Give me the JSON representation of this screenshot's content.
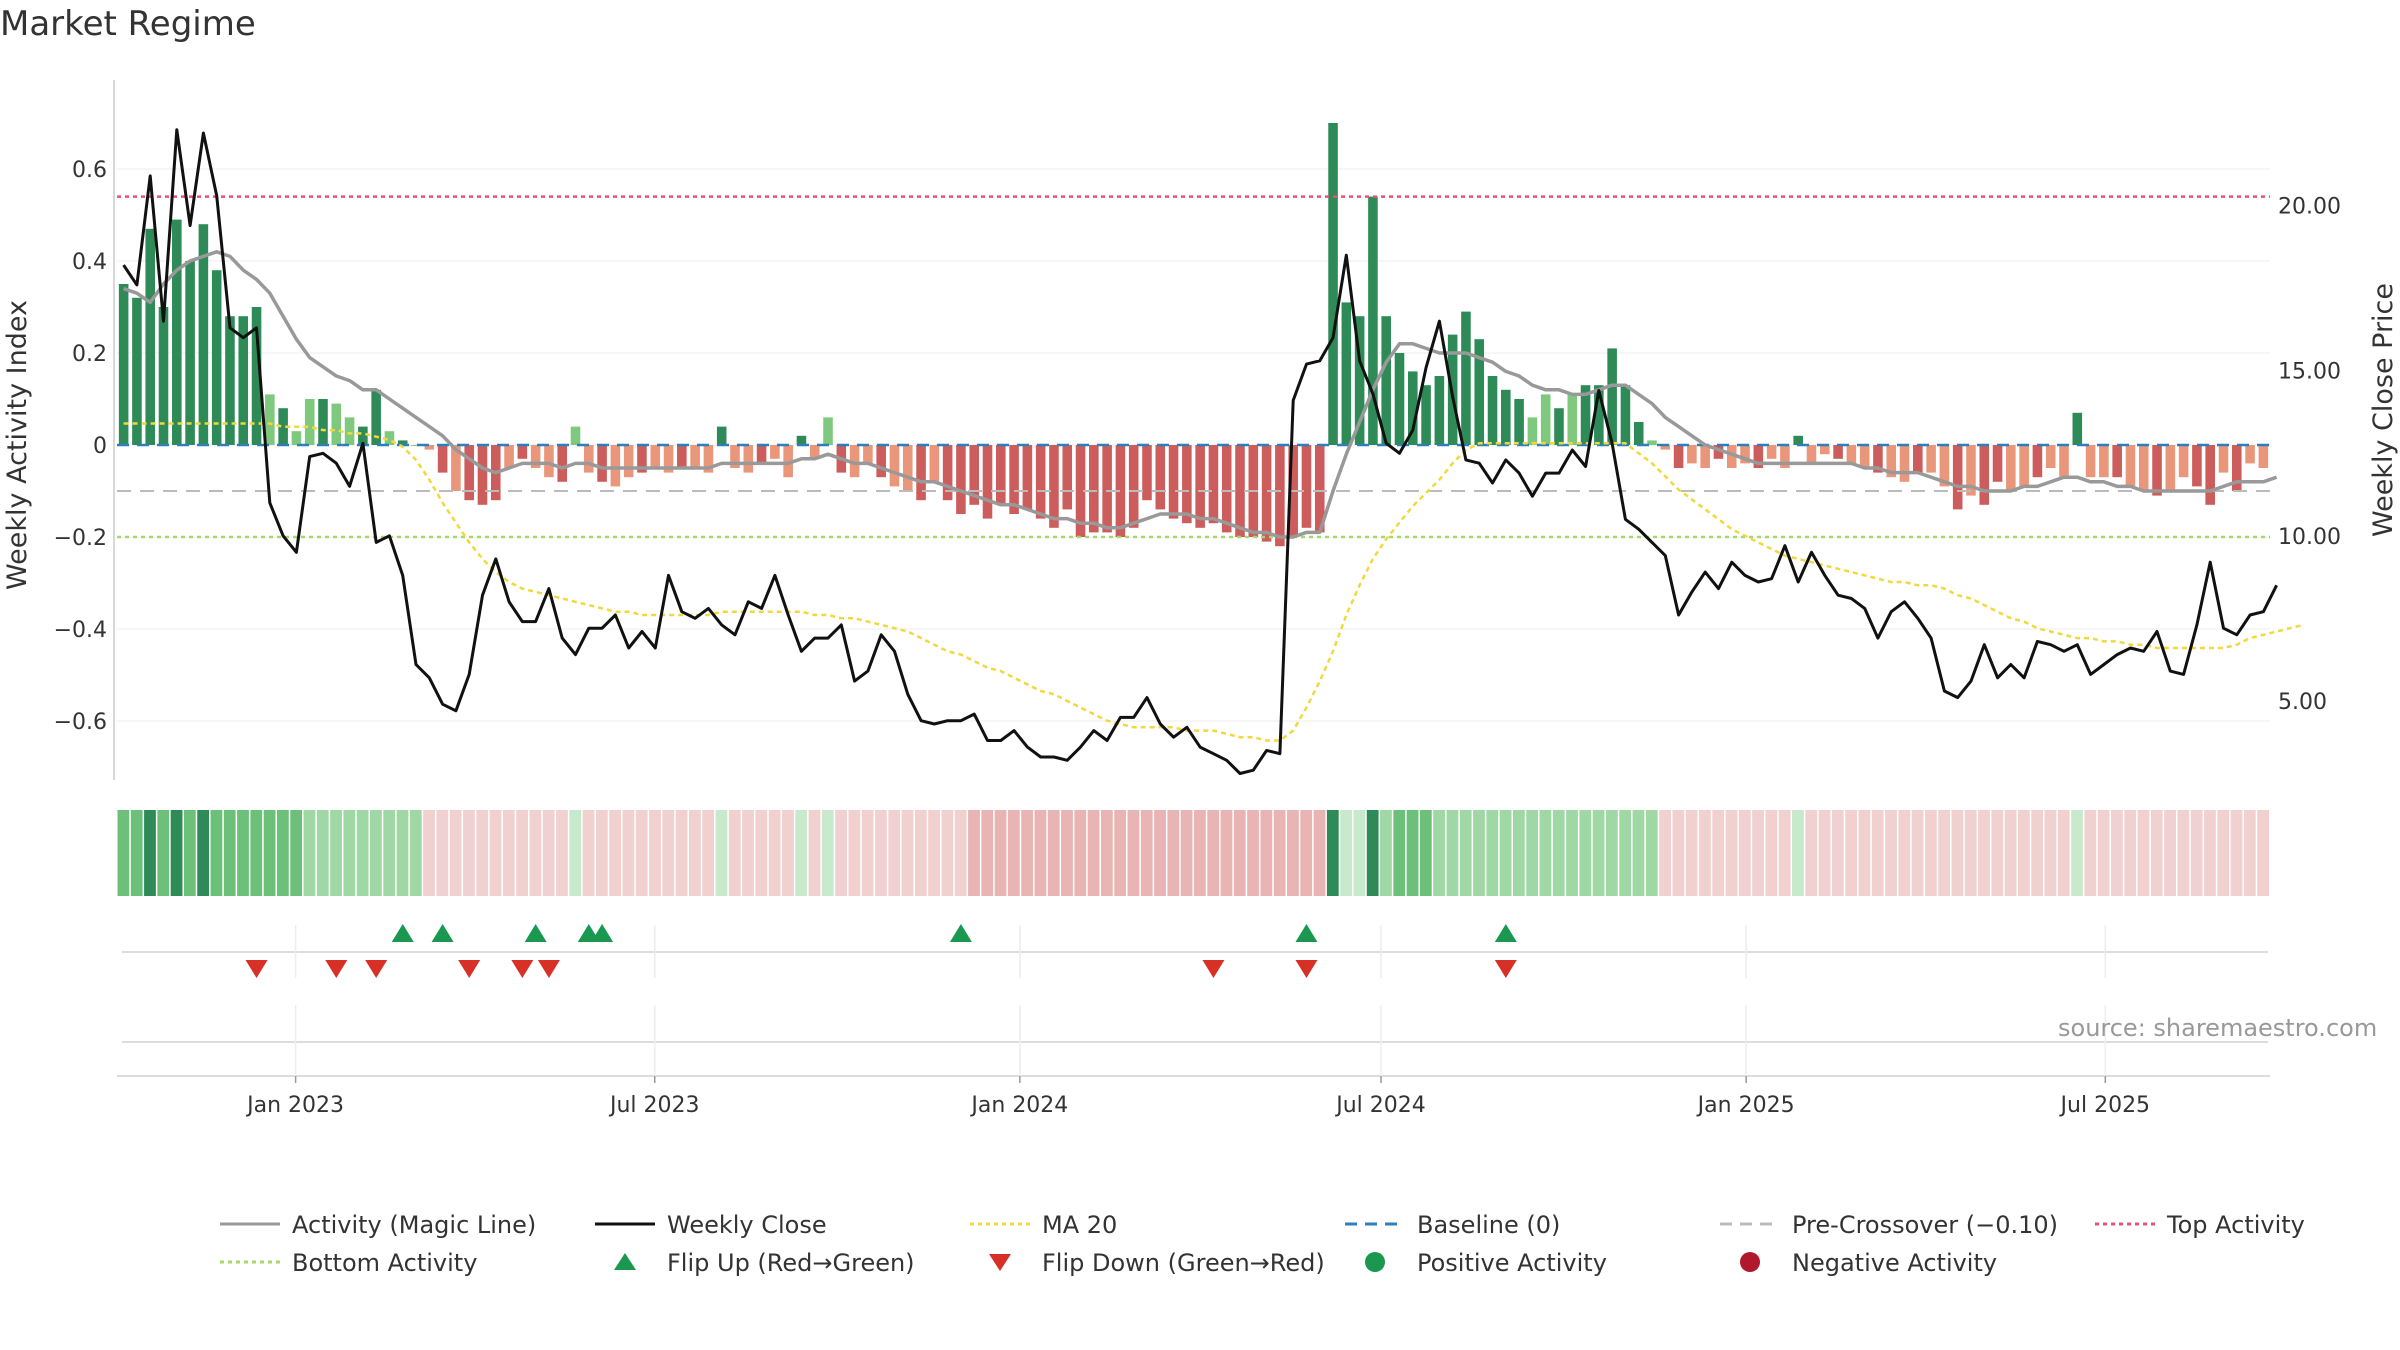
{
  "chart_data": {
    "type": "bar",
    "title": "Market Regime",
    "source": "source: sharemaestro.com",
    "left_axis": {
      "label": "Weekly Activity Index",
      "ylim": [
        -0.75,
        0.75
      ],
      "ticks": [
        0.6,
        0.4,
        0.2,
        0,
        -0.2,
        -0.4,
        -0.6
      ],
      "tick_labels": [
        "0.6",
        "0.4",
        "0.2",
        "0",
        "−0.2",
        "−0.4",
        "−0.6"
      ]
    },
    "right_axis": {
      "label": "Weekly Close Price",
      "ylim": [
        2.3,
        23.2
      ],
      "ticks": [
        20,
        15,
        10,
        5
      ],
      "tick_labels": [
        "20.00",
        "15.00",
        "10.00",
        "5.00"
      ]
    },
    "x_axis": {
      "start": "2022-10-03",
      "end": "2025-09-22",
      "ticks": [
        "2023-01-01",
        "2023-07-01",
        "2024-01-01",
        "2024-07-01",
        "2025-01-01",
        "2025-07-01"
      ],
      "tick_labels": [
        "Jan 2023",
        "Jul 2023",
        "Jan 2024",
        "Jul 2024",
        "Jan 2025",
        "Jul 2025"
      ]
    },
    "reference_lines": {
      "baseline": 0,
      "pre_crossover": -0.1,
      "top_activity": 0.54,
      "bottom_activity": -0.2
    },
    "series": [
      {
        "name": "Weekly Activity Index",
        "values": [
          0.35,
          0.32,
          0.47,
          0.3,
          0.49,
          0.4,
          0.48,
          0.38,
          0.28,
          0.28,
          0.3,
          0.11,
          0.08,
          0.03,
          0.1,
          0.1,
          0.09,
          0.06,
          0.04,
          0.12,
          0.03,
          0.01,
          0.0,
          -0.01,
          -0.06,
          -0.1,
          -0.12,
          -0.13,
          -0.12,
          -0.05,
          -0.03,
          -0.05,
          -0.07,
          -0.08,
          0.04,
          -0.06,
          -0.08,
          -0.09,
          -0.07,
          -0.06,
          -0.05,
          -0.06,
          -0.05,
          -0.05,
          -0.06,
          0.04,
          -0.05,
          -0.06,
          -0.04,
          -0.03,
          -0.07,
          0.02,
          -0.03,
          0.06,
          -0.06,
          -0.07,
          -0.04,
          -0.07,
          -0.09,
          -0.1,
          -0.12,
          -0.08,
          -0.12,
          -0.15,
          -0.13,
          -0.16,
          -0.13,
          -0.15,
          -0.14,
          -0.16,
          -0.18,
          -0.14,
          -0.2,
          -0.19,
          -0.19,
          -0.2,
          -0.18,
          -0.12,
          -0.14,
          -0.16,
          -0.17,
          -0.18,
          -0.17,
          -0.19,
          -0.2,
          -0.2,
          -0.21,
          -0.22,
          -0.2,
          -0.18,
          -0.19,
          0.7,
          0.31,
          0.28,
          0.54,
          0.28,
          0.2,
          0.16,
          0.13,
          0.15,
          0.24,
          0.29,
          0.23,
          0.15,
          0.12,
          0.1,
          0.06,
          0.11,
          0.08,
          0.11,
          0.13,
          0.13,
          0.21,
          0.13,
          0.05,
          0.01,
          -0.01,
          -0.05,
          -0.04,
          -0.05,
          -0.03,
          -0.05,
          -0.04,
          -0.05,
          -0.03,
          -0.05,
          0.02,
          -0.04,
          -0.02,
          -0.03,
          -0.04,
          -0.05,
          -0.06,
          -0.07,
          -0.08,
          -0.06,
          -0.06,
          -0.09,
          -0.14,
          -0.11,
          -0.13,
          -0.08,
          -0.1,
          -0.09,
          -0.07,
          -0.05,
          -0.07,
          0.07,
          -0.07,
          -0.07,
          -0.07,
          -0.09,
          -0.1,
          -0.11,
          -0.1,
          -0.07,
          -0.09,
          -0.13,
          -0.06,
          -0.1,
          -0.04,
          -0.05
        ]
      },
      {
        "name": "Activity (Magic Line)",
        "values": [
          0.34,
          0.33,
          0.31,
          0.35,
          0.38,
          0.4,
          0.41,
          0.42,
          0.41,
          0.38,
          0.36,
          0.33,
          0.28,
          0.23,
          0.19,
          0.17,
          0.15,
          0.14,
          0.12,
          0.12,
          0.1,
          0.08,
          0.06,
          0.04,
          0.02,
          -0.01,
          -0.03,
          -0.05,
          -0.06,
          -0.05,
          -0.04,
          -0.04,
          -0.04,
          -0.05,
          -0.04,
          -0.04,
          -0.05,
          -0.05,
          -0.05,
          -0.05,
          -0.05,
          -0.05,
          -0.05,
          -0.05,
          -0.05,
          -0.04,
          -0.04,
          -0.04,
          -0.04,
          -0.04,
          -0.04,
          -0.03,
          -0.03,
          -0.02,
          -0.03,
          -0.04,
          -0.04,
          -0.05,
          -0.06,
          -0.07,
          -0.08,
          -0.08,
          -0.09,
          -0.1,
          -0.11,
          -0.12,
          -0.13,
          -0.13,
          -0.14,
          -0.15,
          -0.16,
          -0.16,
          -0.17,
          -0.17,
          -0.18,
          -0.18,
          -0.17,
          -0.16,
          -0.15,
          -0.15,
          -0.15,
          -0.16,
          -0.16,
          -0.17,
          -0.18,
          -0.19,
          -0.19,
          -0.2,
          -0.2,
          -0.19,
          -0.19,
          -0.1,
          -0.02,
          0.05,
          0.12,
          0.18,
          0.22,
          0.22,
          0.21,
          0.2,
          0.2,
          0.2,
          0.19,
          0.18,
          0.16,
          0.15,
          0.13,
          0.12,
          0.12,
          0.11,
          0.11,
          0.12,
          0.13,
          0.13,
          0.11,
          0.09,
          0.06,
          0.04,
          0.02,
          0.0,
          -0.01,
          -0.02,
          -0.03,
          -0.04,
          -0.04,
          -0.04,
          -0.04,
          -0.04,
          -0.04,
          -0.04,
          -0.04,
          -0.05,
          -0.05,
          -0.06,
          -0.06,
          -0.06,
          -0.07,
          -0.08,
          -0.09,
          -0.09,
          -0.1,
          -0.1,
          -0.1,
          -0.09,
          -0.09,
          -0.08,
          -0.07,
          -0.07,
          -0.08,
          -0.08,
          -0.09,
          -0.09,
          -0.1,
          -0.1,
          -0.1,
          -0.1,
          -0.1,
          -0.1,
          -0.09,
          -0.08,
          -0.08,
          -0.08,
          -0.07
        ]
      },
      {
        "name": "Weekly Close",
        "values": [
          18.2,
          17.6,
          20.9,
          16.5,
          22.3,
          19.4,
          22.2,
          20.3,
          16.3,
          16,
          16.3,
          11,
          10,
          9.5,
          12.4,
          12.5,
          12.2,
          11.5,
          12.8,
          9.8,
          10,
          8.8,
          6.1,
          5.7,
          4.9,
          4.7,
          5.8,
          8.2,
          9.3,
          8,
          7.4,
          7.4,
          8.4,
          6.9,
          6.4,
          7.2,
          7.2,
          7.6,
          6.6,
          7.1,
          6.6,
          8.8,
          7.7,
          7.5,
          7.8,
          7.3,
          7,
          8,
          7.8,
          8.8,
          7.6,
          6.5,
          6.9,
          6.9,
          7.3,
          5.6,
          5.9,
          7,
          6.5,
          5.2,
          4.4,
          4.3,
          4.4,
          4.4,
          4.6,
          3.8,
          3.8,
          4.1,
          3.6,
          3.3,
          3.3,
          3.2,
          3.6,
          4.1,
          3.8,
          4.5,
          4.5,
          5.1,
          4.3,
          3.9,
          4.2,
          3.6,
          3.4,
          3.2,
          2.8,
          2.9,
          3.5,
          3.4,
          14.1,
          15.2,
          15.3,
          16,
          18.5,
          15.3,
          14.3,
          12.8,
          12.5,
          13.2,
          15.1,
          16.5,
          14.2,
          12.3,
          12.2,
          11.6,
          12.3,
          11.9,
          11.2,
          11.9,
          11.9,
          12.6,
          12.1,
          14.4,
          12.8,
          10.5,
          10.2,
          9.8,
          9.4,
          7.6,
          8.3,
          8.9,
          8.4,
          9.2,
          8.8,
          8.6,
          8.7,
          9.7,
          8.6,
          9.5,
          8.8,
          8.2,
          8.1,
          7.8,
          6.9,
          7.7,
          8,
          7.5,
          6.9,
          5.3,
          5.1,
          5.6,
          6.7,
          5.7,
          6.1,
          5.7,
          6.8,
          6.7,
          6.5,
          6.7,
          5.8,
          6.1,
          6.4,
          6.6,
          6.5,
          7.1,
          5.9,
          5.8,
          7.3,
          9.2,
          7.2,
          7,
          7.6,
          7.7,
          8.5
        ]
      },
      {
        "name": "MA 20",
        "values": [
          13.4,
          13.4,
          13.4,
          13.4,
          13.4,
          13.4,
          13.4,
          13.4,
          13.4,
          13.4,
          13.4,
          13.4,
          13.3,
          13.3,
          13.3,
          13.2,
          13.2,
          13.1,
          13.1,
          13,
          12.9,
          12.7,
          12.3,
          11.7,
          11,
          10.4,
          9.8,
          9.3,
          8.9,
          8.6,
          8.4,
          8.3,
          8.2,
          8.1,
          8,
          7.9,
          7.8,
          7.7,
          7.7,
          7.6,
          7.6,
          7.6,
          7.6,
          7.6,
          7.6,
          7.7,
          7.7,
          7.7,
          7.7,
          7.7,
          7.7,
          7.7,
          7.6,
          7.6,
          7.5,
          7.5,
          7.4,
          7.3,
          7.2,
          7.1,
          6.9,
          6.7,
          6.5,
          6.4,
          6.2,
          6,
          5.9,
          5.7,
          5.5,
          5.3,
          5.2,
          5,
          4.8,
          4.6,
          4.4,
          4.3,
          4.2,
          4.2,
          4.2,
          4.2,
          4.1,
          4.1,
          4.1,
          4,
          3.9,
          3.9,
          3.8,
          3.8,
          4.1,
          4.8,
          5.6,
          6.5,
          7.6,
          8.5,
          9.3,
          9.9,
          10.4,
          10.9,
          11.3,
          11.7,
          12.2,
          12.6,
          12.8,
          12.8,
          12.8,
          12.8,
          12.8,
          12.8,
          12.8,
          12.8,
          12.8,
          12.8,
          12.8,
          12.8,
          12.5,
          12.2,
          11.8,
          11.4,
          11.1,
          10.8,
          10.5,
          10.2,
          10,
          9.8,
          9.6,
          9.4,
          9.3,
          9.2,
          9.1,
          9,
          8.9,
          8.8,
          8.7,
          8.6,
          8.6,
          8.5,
          8.5,
          8.4,
          8.2,
          8.1,
          7.9,
          7.7,
          7.5,
          7.4,
          7.2,
          7.1,
          7,
          6.9,
          6.9,
          6.8,
          6.8,
          6.7,
          6.7,
          6.6,
          6.6,
          6.6,
          6.6,
          6.6,
          6.6,
          6.7,
          6.9,
          7,
          7.1,
          7.2,
          7.3
        ]
      }
    ],
    "flip_up_weeks": [
      21,
      24,
      31,
      35,
      36,
      63,
      89,
      104
    ],
    "flip_down_weeks": [
      10,
      16,
      19,
      26,
      30,
      32,
      82,
      89,
      104
    ]
  },
  "legend": [
    {
      "label": "Activity (Magic Line)",
      "kind": "line",
      "color": "#999999",
      "dash": ""
    },
    {
      "label": "Weekly Close",
      "kind": "line",
      "color": "#111111",
      "dash": ""
    },
    {
      "label": "MA 20",
      "kind": "line",
      "color": "#f1d83c",
      "dash": "4 4"
    },
    {
      "label": "Baseline (0)",
      "kind": "line",
      "color": "#2c7fb8",
      "dash": "12 8"
    },
    {
      "label": "Pre-Crossover (−0.10)",
      "kind": "line",
      "color": "#bbbbbb",
      "dash": "12 8"
    },
    {
      "label": "Top Activity",
      "kind": "line",
      "color": "#e05577",
      "dash": "4 4"
    },
    {
      "label": "Bottom Activity",
      "kind": "line",
      "color": "#a6d96a",
      "dash": "4 4"
    },
    {
      "label": "Flip Up (Red→Green)",
      "kind": "triangle-up",
      "color": "#1a9850"
    },
    {
      "label": "Flip Down (Green→Red)",
      "kind": "triangle-down",
      "color": "#d73027"
    },
    {
      "label": "Positive Activity",
      "kind": "dot",
      "color": "#1a9850"
    },
    {
      "label": "Negative Activity",
      "kind": "dot",
      "color": "#b2182b"
    }
  ],
  "colors": {
    "bar_pos_strong": "#2e8b57",
    "bar_pos_weak": "#7fc97f",
    "bar_neg_strong": "#cd5c5c",
    "bar_neg_weak": "#e9967a",
    "magic_line": "#999999",
    "close_line": "#111111",
    "ma_line": "#f1d83c"
  }
}
